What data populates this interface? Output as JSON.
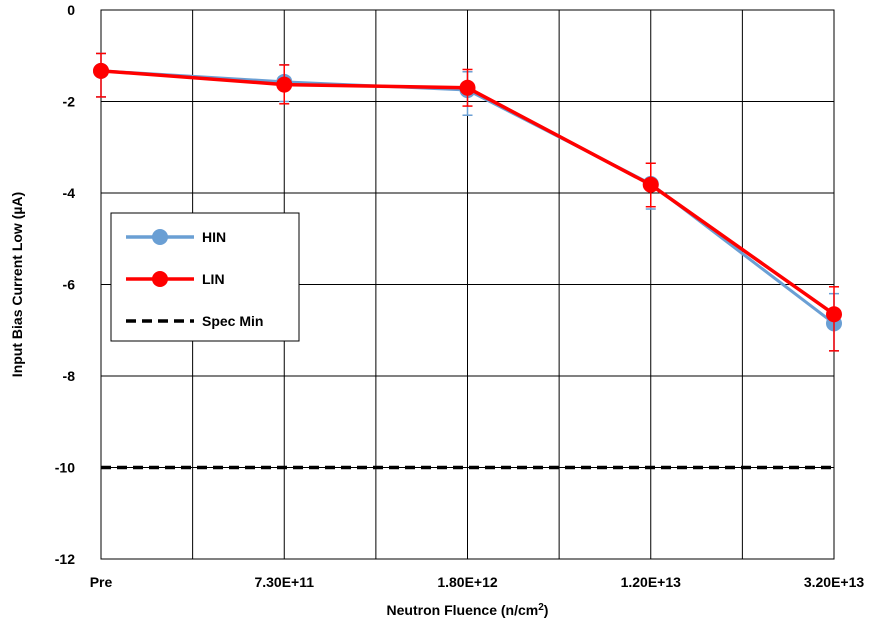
{
  "chart_data": {
    "type": "line",
    "xlabel_main": "Neutron Fluence (n/cm",
    "xlabel_sup": "2",
    "xlabel_end": ")",
    "ylabel": "Input Bias Current Low (µA)",
    "categories": [
      "Pre",
      "7.30E+11",
      "1.80E+12",
      "1.20E+13",
      "3.20E+13"
    ],
    "ylim": [
      -12,
      0
    ],
    "yticks": [
      0,
      -2,
      -4,
      -6,
      -8,
      -10,
      -12
    ],
    "y_tick_labels": [
      "0",
      "-2",
      "-4",
      "-6",
      "-8",
      "-10",
      "-12"
    ],
    "grid": true,
    "legend_placement": "left",
    "series": [
      {
        "name": "HIN",
        "color": "#6a9fd4",
        "values": [
          -1.33,
          -1.57,
          -1.75,
          -3.8,
          -6.85
        ],
        "err_low": [
          -1.9,
          -2.0,
          -2.3,
          -4.35,
          -7.45
        ],
        "err_high": [
          -0.95,
          -1.2,
          -1.35,
          -3.35,
          -6.2
        ]
      },
      {
        "name": "LIN",
        "color": "#ff0000",
        "values": [
          -1.33,
          -1.63,
          -1.7,
          -3.82,
          -6.65
        ],
        "err_low": [
          -1.9,
          -2.05,
          -2.1,
          -4.3,
          -7.45
        ],
        "err_high": [
          -0.95,
          -1.2,
          -1.3,
          -3.35,
          -6.05
        ]
      }
    ],
    "reference_lines": [
      {
        "name": "Spec Min",
        "value": -10,
        "color": "#000000",
        "style": "dashed"
      }
    ]
  }
}
